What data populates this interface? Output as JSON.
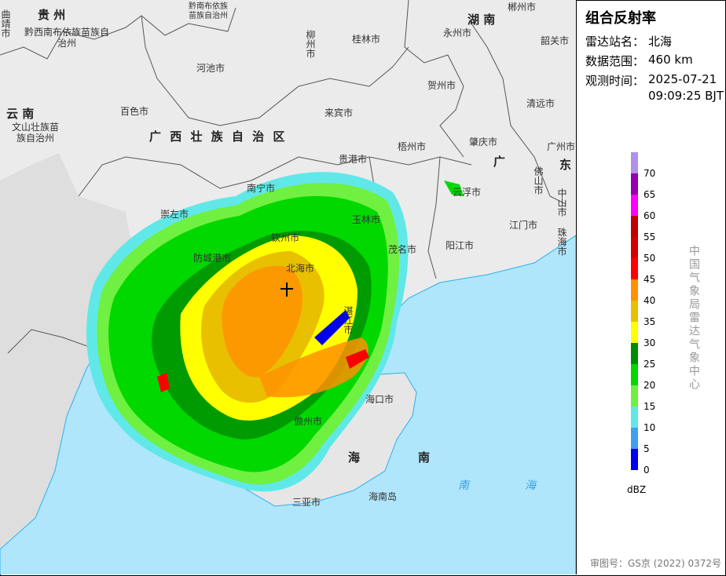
{
  "panel": {
    "title": "组合反射率",
    "station_label": "雷达站名：",
    "station": "北海",
    "range_label": "数据范围：",
    "range": "460 km",
    "time_label": "观测时间：",
    "date": "2025-07-21",
    "time": "09:09:25 BJT",
    "unit": "dBZ",
    "credit": "中国气象局雷达气象中心",
    "footer": "审图号：GS京 (2022) 0372号"
  },
  "legend": {
    "ticks": [
      "70",
      "65",
      "60",
      "55",
      "50",
      "45",
      "40",
      "35",
      "30",
      "25",
      "20",
      "15",
      "10",
      "5",
      "0"
    ],
    "colors": [
      "#b090e8",
      "#9400b0",
      "#ff00ff",
      "#c00000",
      "#d40000",
      "#ff0000",
      "#ff9000",
      "#e8c000",
      "#ffff00",
      "#008c00",
      "#00d800",
      "#70f040",
      "#60e8e8",
      "#40a0f0",
      "#0000f0"
    ]
  },
  "map": {
    "provinces": [
      "贵  州",
      "湖  南",
      "云  南",
      "广  西  壮  族  自  治  区",
      "广",
      "东",
      "海",
      "南"
    ],
    "sea_labels": [
      "南",
      "海"
    ],
    "places": [
      "曲靖市",
      "黔西南布依族苗族自治州",
      "黔南布依族苗族自治州",
      "柳州市",
      "桂林市",
      "永州市",
      "郴州市",
      "韶关市",
      "河池市",
      "贺州市",
      "百色市",
      "来宾市",
      "清远市",
      "文山壮族苗族自治州",
      "梧州市",
      "肇庆市",
      "贵港市",
      "佛山市",
      "广州市",
      "南宁市",
      "崇左市",
      "玉林市",
      "云浮市",
      "中山市",
      "钦州市",
      "江门市",
      "防城港市",
      "北海市",
      "茂名市",
      "阳江市",
      "珠海市",
      "湛江市",
      "海口市",
      "儋州市",
      "三亚市",
      "海南岛"
    ]
  }
}
